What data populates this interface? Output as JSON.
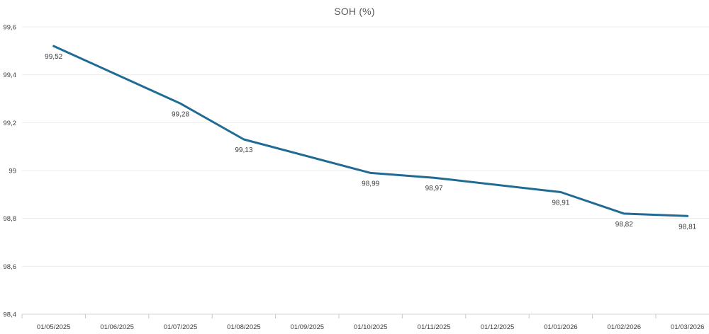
{
  "header": {
    "title": "SOH (%)"
  },
  "colors": {
    "line": "#1f6b94",
    "grid": "#ebebeb",
    "axis": "#d6d6d6",
    "tick_mark": "#c9c9c9",
    "axis_label": "#404040",
    "data_label": "#3d3d3d",
    "title": "#595959",
    "background": "#ffffff"
  },
  "chart_data": {
    "type": "line",
    "title": "SOH (%)",
    "xlabel": "",
    "ylabel": "",
    "grid": true,
    "legend": false,
    "decimal_separator": ",",
    "categories": [
      "01/05/2025",
      "01/06/2025",
      "01/07/2025",
      "01/08/2025",
      "01/09/2025",
      "01/10/2025",
      "01/11/2025",
      "01/12/2025",
      "01/01/2026",
      "01/02/2026",
      "01/03/2026"
    ],
    "series": [
      {
        "name": "SOH",
        "values": [
          99.52,
          null,
          99.28,
          99.13,
          null,
          98.99,
          98.97,
          null,
          98.91,
          98.82,
          98.81
        ]
      }
    ],
    "data_labels": [
      "99,52",
      null,
      "99,28",
      "99,13",
      null,
      "98,99",
      "98,97",
      null,
      "98,91",
      "98,82",
      "98,81"
    ],
    "y_axis": {
      "min": 98.4,
      "max": 99.6,
      "ticks": [
        {
          "value": 99.6,
          "label": "99,6"
        },
        {
          "value": 99.4,
          "label": "99,4"
        },
        {
          "value": 99.2,
          "label": "99,2"
        },
        {
          "value": 99.0,
          "label": "99"
        },
        {
          "value": 98.8,
          "label": "98,8"
        },
        {
          "value": 98.6,
          "label": "98,6"
        },
        {
          "value": 98.4,
          "label": "98,4"
        }
      ]
    }
  }
}
